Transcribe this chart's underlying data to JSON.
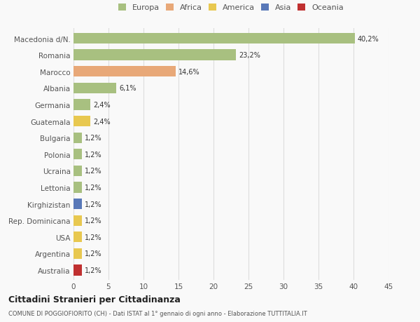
{
  "categories": [
    "Macedonia d/N.",
    "Romania",
    "Marocco",
    "Albania",
    "Germania",
    "Guatemala",
    "Bulgaria",
    "Polonia",
    "Ucraina",
    "Lettonia",
    "Kirghizistan",
    "Rep. Dominicana",
    "USA",
    "Argentina",
    "Australia"
  ],
  "values": [
    40.2,
    23.2,
    14.6,
    6.1,
    2.4,
    2.4,
    1.2,
    1.2,
    1.2,
    1.2,
    1.2,
    1.2,
    1.2,
    1.2,
    1.2
  ],
  "labels": [
    "40,2%",
    "23,2%",
    "14,6%",
    "6,1%",
    "2,4%",
    "2,4%",
    "1,2%",
    "1,2%",
    "1,2%",
    "1,2%",
    "1,2%",
    "1,2%",
    "1,2%",
    "1,2%",
    "1,2%"
  ],
  "colors": [
    "#a8c080",
    "#a8c080",
    "#e8a878",
    "#a8c080",
    "#a8c080",
    "#e8c850",
    "#a8c080",
    "#a8c080",
    "#a8c080",
    "#a8c080",
    "#5878b8",
    "#e8c850",
    "#e8c850",
    "#e8c850",
    "#c03030"
  ],
  "legend": [
    {
      "label": "Europa",
      "color": "#a8c080"
    },
    {
      "label": "Africa",
      "color": "#e8a878"
    },
    {
      "label": "America",
      "color": "#e8c850"
    },
    {
      "label": "Asia",
      "color": "#5878b8"
    },
    {
      "label": "Oceania",
      "color": "#c03030"
    }
  ],
  "xlim": [
    0,
    45
  ],
  "xticks": [
    0,
    5,
    10,
    15,
    20,
    25,
    30,
    35,
    40,
    45
  ],
  "title": "Cittadini Stranieri per Cittadinanza",
  "subtitle": "COMUNE DI POGGIOFIORITO (CH) - Dati ISTAT al 1° gennaio di ogni anno - Elaborazione TUTTITALIA.IT",
  "background_color": "#f9f9f9",
  "bar_height": 0.65,
  "grid_color": "#dddddd",
  "text_color": "#555555",
  "label_color": "#333333"
}
